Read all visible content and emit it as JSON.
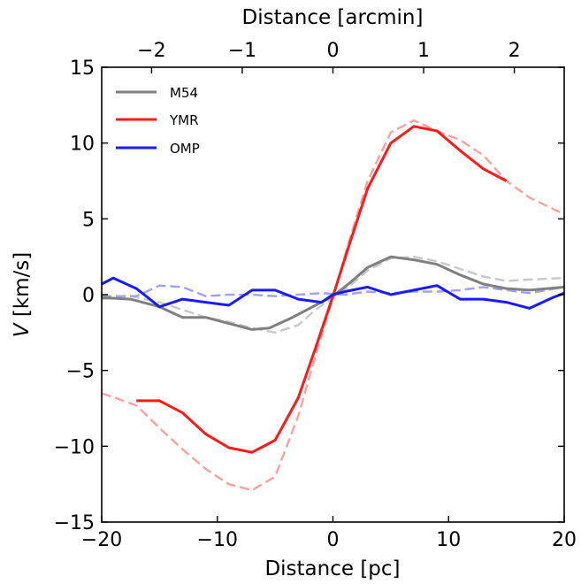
{
  "chart_data": {
    "type": "line",
    "xlabel": "Distance [pc]",
    "ylabel_italic": "V",
    "ylabel_unit": " [km/s]",
    "x2label": "Distance [arcmin]",
    "xlim": [
      -20,
      20
    ],
    "ylim": [
      -15,
      15
    ],
    "x2lim": [
      -2.55,
      2.55
    ],
    "xticks": [
      -20,
      -10,
      0,
      10,
      20
    ],
    "xtick_labels": [
      "−20",
      "−10",
      "0",
      "10",
      "20"
    ],
    "yticks": [
      -15,
      -10,
      -5,
      0,
      5,
      10,
      15
    ],
    "ytick_labels": [
      "−15",
      "−10",
      "−5",
      "0",
      "5",
      "10",
      "15"
    ],
    "x2ticks": [
      -2,
      -1,
      0,
      1,
      2
    ],
    "x2tick_labels": [
      "−2",
      "−1",
      "0",
      "1",
      "2"
    ],
    "grid": false,
    "legend_position": "top-left",
    "legend": [
      {
        "name": "M54",
        "color": "#808080"
      },
      {
        "name": "YMR",
        "color": "#ff1a1a"
      },
      {
        "name": "OMP",
        "color": "#1a1aff"
      }
    ],
    "series": [
      {
        "key": "m54_solid",
        "color": "#808080",
        "style": "solid",
        "x": [
          -20,
          -17.5,
          -15,
          -13,
          -11,
          -9,
          -7,
          -5.5,
          -3.5,
          -1.5,
          0,
          1.5,
          3,
          5,
          7,
          9,
          11,
          13,
          15,
          17,
          20
        ],
        "y": [
          -0.2,
          -0.3,
          -0.8,
          -1.5,
          -1.5,
          -1.9,
          -2.3,
          -2.2,
          -1.5,
          -0.7,
          -0.1,
          0.8,
          1.8,
          2.5,
          2.3,
          2.0,
          1.3,
          0.7,
          0.4,
          0.3,
          0.5
        ]
      },
      {
        "key": "m54_dashed",
        "color": "#c8c8c8",
        "style": "dashed",
        "x": [
          -20,
          -17.5,
          -15,
          -13,
          -11,
          -9,
          -7,
          -5,
          -3,
          -1.5,
          0,
          1.5,
          3,
          5,
          7,
          9,
          11,
          13,
          15,
          17,
          20
        ],
        "y": [
          -0.3,
          -0.1,
          -0.5,
          -1.0,
          -1.5,
          -1.8,
          -2.2,
          -2.5,
          -2.0,
          -1.0,
          -0.2,
          0.6,
          1.6,
          2.4,
          2.5,
          2.2,
          1.7,
          1.2,
          0.9,
          1.0,
          1.1
        ]
      },
      {
        "key": "ymr_solid",
        "color": "#ff1a1a",
        "style": "solid",
        "x": [
          -17,
          -15,
          -13,
          -11,
          -9,
          -7,
          -5,
          -3,
          -1.5,
          0,
          1.5,
          3,
          5,
          7,
          9,
          11,
          13,
          15
        ],
        "y": [
          -7.0,
          -7.0,
          -7.8,
          -9.2,
          -10.1,
          -10.4,
          -9.6,
          -6.8,
          -3.5,
          -0.1,
          3.5,
          7.0,
          10.0,
          11.1,
          10.8,
          9.5,
          8.3,
          7.5
        ]
      },
      {
        "key": "ymr_dashed",
        "color": "#ffa0a0",
        "style": "dashed",
        "x": [
          -20,
          -17,
          -15,
          -13,
          -11,
          -9,
          -7,
          -5,
          -3,
          -1.5,
          0,
          1.5,
          3,
          5,
          7,
          9,
          11,
          13,
          15,
          17,
          20
        ],
        "y": [
          -6.5,
          -7.3,
          -8.8,
          -10.2,
          -11.5,
          -12.5,
          -12.9,
          -12.0,
          -8.0,
          -4.0,
          -0.2,
          3.8,
          7.5,
          10.7,
          11.5,
          10.8,
          10.2,
          9.2,
          7.5,
          6.4,
          5.3
        ]
      },
      {
        "key": "omp_solid",
        "color": "#1a1aff",
        "style": "solid",
        "x": [
          -20,
          -19,
          -17,
          -15,
          -13,
          -11,
          -9,
          -7,
          -5,
          -3,
          -1,
          0,
          1,
          3,
          5,
          7,
          9,
          11,
          13,
          15,
          17,
          19,
          20
        ],
        "y": [
          0.7,
          1.1,
          0.4,
          -0.8,
          -0.3,
          -0.5,
          -0.7,
          0.3,
          0.3,
          -0.3,
          -0.5,
          0.0,
          0.2,
          0.5,
          0.0,
          0.3,
          0.6,
          -0.3,
          -0.3,
          -0.5,
          -0.9,
          -0.2,
          0.1
        ]
      },
      {
        "key": "omp_dashed",
        "color": "#a0a0ff",
        "style": "dashed",
        "x": [
          -20,
          -17,
          -15,
          -13,
          -11,
          -9,
          -7,
          -5,
          -3,
          -1,
          1,
          3,
          5,
          7,
          9,
          11,
          13,
          15,
          17,
          20
        ],
        "y": [
          -0.1,
          -0.1,
          0.6,
          0.5,
          -0.1,
          0.0,
          0.0,
          -0.1,
          0.0,
          0.1,
          0.0,
          0.2,
          0.1,
          0.2,
          0.2,
          0.3,
          0.5,
          0.3,
          0.1,
          0.5
        ]
      }
    ]
  }
}
